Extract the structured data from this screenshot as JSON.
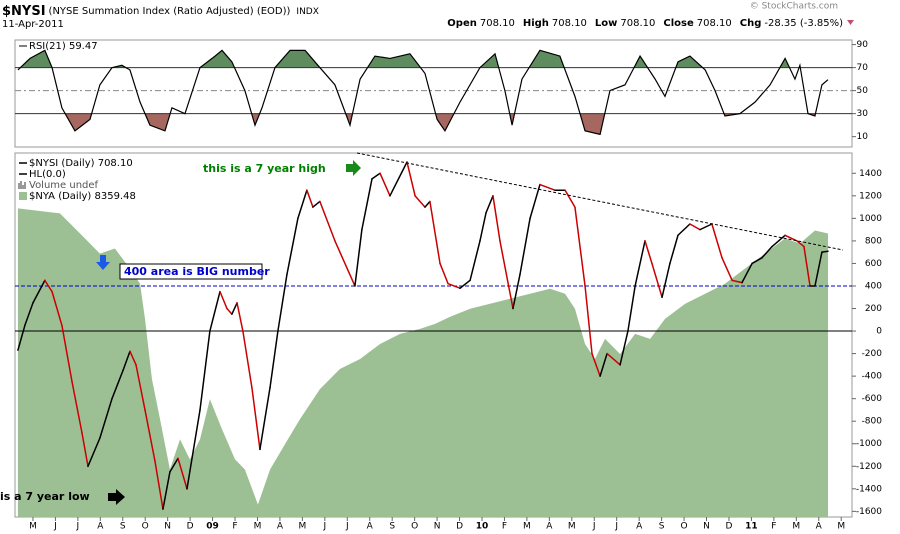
{
  "header": {
    "symbol": "$NYSI",
    "name": "(NYSE Summation Index (Ratio Adjusted) (EOD))",
    "exchange": "INDX",
    "date": "11-Apr-2011",
    "quote": [
      {
        "label": "Open",
        "value": "708.10"
      },
      {
        "label": "High",
        "value": "708.10"
      },
      {
        "label": "Low",
        "value": "708.10"
      },
      {
        "label": "Close",
        "value": "708.10"
      },
      {
        "label": "Chg",
        "value": "-28.35 (-3.85%)"
      }
    ],
    "copyright": "© StockCharts.com"
  },
  "chart_data": [
    {
      "type": "line",
      "xlim": [
        -0.8,
        36.48
      ],
      "ylim": [
        1,
        94
      ],
      "yticks": [
        10,
        30,
        50,
        70,
        90
      ],
      "reference_lines": [
        {
          "value": 70,
          "color": "#333",
          "fill_above": "#5e8c5e"
        },
        {
          "value": 50,
          "color": "#888",
          "dash": true
        },
        {
          "value": 30,
          "color": "#333",
          "fill_below": "#a5675f"
        }
      ],
      "series": [
        {
          "name": "RSI(21) 59.47",
          "color": "#000",
          "x": [
            -0.67,
            -0.13,
            0.53,
            0.85,
            1.29,
            1.87,
            2.54,
            2.98,
            3.52,
            3.96,
            4.32,
            4.77,
            5.21,
            5.88,
            6.19,
            6.77,
            7.44,
            8.11,
            8.42,
            8.86,
            9.44,
            9.89,
            10.2,
            10.78,
            11.45,
            12.12,
            12.69,
            13.45,
            14.12,
            14.57,
            15.23,
            15.9,
            16.79,
            17.46,
            18.0,
            18.35,
            19.02,
            19.91,
            20.58,
            21.02,
            21.34,
            21.78,
            22.58,
            23.47,
            24.14,
            24.59,
            25.26,
            25.7,
            26.37,
            27.04,
            27.71,
            28.15,
            28.73,
            29.26,
            29.94,
            30.38,
            30.82,
            31.49,
            32.16,
            32.83,
            33.5,
            33.94,
            34.16,
            34.52,
            34.83,
            35.14,
            35.41
          ],
          "values": [
            68,
            78,
            85,
            70,
            35,
            15,
            25,
            55,
            70,
            72,
            68,
            40,
            20,
            15,
            35,
            30,
            70,
            80,
            85,
            75,
            50,
            20,
            35,
            70,
            85,
            85,
            72,
            55,
            20,
            60,
            80,
            78,
            82,
            65,
            25,
            15,
            40,
            70,
            82,
            50,
            20,
            60,
            85,
            80,
            45,
            15,
            12,
            50,
            55,
            80,
            60,
            45,
            75,
            80,
            68,
            50,
            28,
            30,
            40,
            55,
            78,
            60,
            72,
            30,
            28,
            55,
            59.47
          ]
        }
      ]
    },
    {
      "type": "line",
      "xlim": [
        -0.8,
        36.48
      ],
      "ylim": [
        -1650,
        1580
      ],
      "y2lim": [
        4040,
        9585
      ],
      "yticks": [
        -1600,
        -1400,
        -1200,
        -1000,
        -800,
        -600,
        -400,
        -200,
        0,
        200,
        400,
        600,
        800,
        1000,
        1200,
        1400
      ],
      "xticks": [
        {
          "value": 0,
          "label": "M"
        },
        {
          "value": 1,
          "label": "J"
        },
        {
          "value": 2,
          "label": "J"
        },
        {
          "value": 3,
          "label": "A"
        },
        {
          "value": 4,
          "label": "S"
        },
        {
          "value": 5,
          "label": "O"
        },
        {
          "value": 6,
          "label": "N"
        },
        {
          "value": 7,
          "label": "D"
        },
        {
          "value": 8,
          "label": "09"
        },
        {
          "value": 9,
          "label": "F"
        },
        {
          "value": 10,
          "label": "M"
        },
        {
          "value": 11,
          "label": "A"
        },
        {
          "value": 12,
          "label": "M"
        },
        {
          "value": 13,
          "label": "J"
        },
        {
          "value": 14,
          "label": "J"
        },
        {
          "value": 15,
          "label": "A"
        },
        {
          "value": 16,
          "label": "S"
        },
        {
          "value": 17,
          "label": "O"
        },
        {
          "value": 18,
          "label": "N"
        },
        {
          "value": 19,
          "label": "D"
        },
        {
          "value": 20,
          "label": "10"
        },
        {
          "value": 21,
          "label": "F"
        },
        {
          "value": 22,
          "label": "M"
        },
        {
          "value": 23,
          "label": "A"
        },
        {
          "value": 24,
          "label": "M"
        },
        {
          "value": 25,
          "label": "J"
        },
        {
          "value": 26,
          "label": "J"
        },
        {
          "value": 27,
          "label": "A"
        },
        {
          "value": 28,
          "label": "S"
        },
        {
          "value": 29,
          "label": "O"
        },
        {
          "value": 30,
          "label": "N"
        },
        {
          "value": 31,
          "label": "D"
        },
        {
          "value": 32,
          "label": "11"
        },
        {
          "value": 33,
          "label": "F"
        },
        {
          "value": 34,
          "label": "M"
        },
        {
          "value": 35,
          "label": "A"
        },
        {
          "value": 36,
          "label": "M"
        }
      ],
      "reference_lines": [
        {
          "name": "HL(0.0)",
          "value": 0,
          "color": "#000"
        },
        {
          "value": 400,
          "color": "#0000cc",
          "dash": true
        }
      ],
      "legend_extra": "Volume undef",
      "annotations": [
        {
          "text": "this is a 7 year high",
          "color": "#008000"
        },
        {
          "text": "400 area is BIG number",
          "color": "#0000cc"
        },
        {
          "text": "is a 7 year low",
          "color": "#000"
        }
      ],
      "series": [
        {
          "name": "$NYA (Daily) 8359.48",
          "type": "area",
          "axis": "y2",
          "color": "#9dbf94",
          "x": [
            -0.67,
            1.2,
            1.87,
            2.54,
            2.98,
            3.65,
            4.32,
            4.77,
            4.99,
            5.3,
            5.66,
            6.1,
            6.55,
            6.99,
            7.44,
            7.88,
            8.42,
            9.0,
            9.44,
            10.02,
            10.56,
            11.22,
            11.89,
            12.78,
            13.67,
            14.57,
            15.46,
            16.35,
            17.24,
            17.91,
            18.57,
            19.47,
            20.36,
            21.25,
            22.14,
            23.03,
            23.7,
            24.14,
            24.59,
            25.03,
            25.48,
            26.15,
            26.82,
            27.49,
            28.15,
            29.05,
            29.94,
            30.82,
            31.71,
            32.6,
            33.49,
            34.16,
            34.83,
            35.41
          ],
          "values": [
            8742,
            8665,
            8436,
            8206,
            8053,
            8130,
            7824,
            7594,
            7058,
            6140,
            5529,
            4764,
            5223,
            4917,
            5223,
            5835,
            5376,
            4917,
            4764,
            4228,
            4764,
            5146,
            5529,
            5988,
            6294,
            6446,
            6676,
            6829,
            6906,
            6982,
            7089,
            7212,
            7288,
            7365,
            7441,
            7518,
            7441,
            7212,
            6676,
            6446,
            6753,
            6523,
            6829,
            6753,
            7058,
            7288,
            7441,
            7594,
            7824,
            8053,
            8283,
            8206,
            8405,
            8359.48
          ]
        },
        {
          "name": "$NYSI (Daily) 708.10",
          "type": "line",
          "color": "#000",
          "down_color": "#cc0000",
          "x": [
            -0.67,
            -0.36,
            0,
            0.53,
            0.85,
            1.29,
            1.74,
            2.18,
            2.45,
            2.98,
            3.52,
            4.01,
            4.32,
            4.59,
            4.99,
            5.43,
            5.79,
            6.1,
            6.46,
            6.86,
            7.44,
            7.88,
            8.33,
            8.64,
            8.86,
            9.09,
            9.35,
            9.75,
            10.11,
            10.56,
            10.91,
            11.31,
            11.8,
            12.2,
            12.47,
            12.78,
            13.45,
            14.34,
            14.65,
            15.1,
            15.46,
            15.9,
            16.66,
            17.02,
            17.46,
            17.68,
            18.13,
            18.49,
            19.02,
            19.47,
            19.91,
            20.18,
            20.49,
            20.8,
            21.38,
            21.69,
            22.14,
            22.58,
            23.25,
            23.7,
            24.14,
            24.59,
            24.9,
            25.26,
            25.57,
            26.15,
            26.5,
            26.82,
            27.26,
            27.57,
            28.02,
            28.37,
            28.73,
            29.26,
            29.71,
            30.24,
            30.69,
            31.14,
            31.58,
            32.03,
            32.47,
            32.92,
            33.5,
            34.03,
            34.34,
            34.61,
            34.83,
            35.14,
            35.41
          ],
          "values": [
            -170,
            50,
            250,
            450,
            350,
            50,
            -450,
            -900,
            -1200,
            -950,
            -600,
            -350,
            -180,
            -300,
            -700,
            -1150,
            -1580,
            -1250,
            -1130,
            -1400,
            -700,
            0,
            350,
            200,
            150,
            250,
            0,
            -500,
            -1050,
            -500,
            0,
            500,
            1000,
            1250,
            1100,
            1150,
            800,
            400,
            900,
            1350,
            1400,
            1200,
            1500,
            1200,
            1100,
            1150,
            600,
            420,
            380,
            450,
            800,
            1050,
            1200,
            800,
            200,
            500,
            1000,
            1300,
            1250,
            1250,
            1100,
            400,
            -200,
            -400,
            -200,
            -300,
            0,
            400,
            800,
            600,
            300,
            600,
            850,
            950,
            900,
            950,
            650,
            450,
            430,
            600,
            650,
            750,
            850,
            800,
            750,
            400,
            400,
            700,
            708.1
          ]
        }
      ]
    }
  ]
}
